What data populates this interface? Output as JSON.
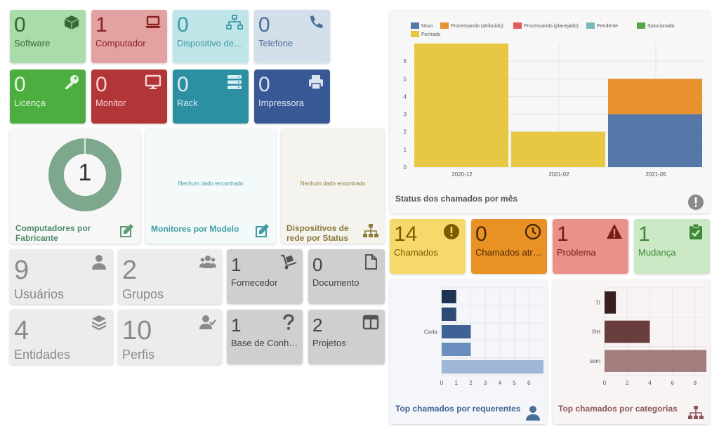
{
  "row1": [
    {
      "num": "0",
      "label": "Software",
      "bg": "#a9dca8",
      "fg": "#2f6b32",
      "icon": "box-icon"
    },
    {
      "num": "1",
      "label": "Computador",
      "bg": "#e3a2a2",
      "fg": "#8a2020",
      "icon": "laptop-icon"
    },
    {
      "num": "0",
      "label": "Dispositivo de rede",
      "bg": "#bfe5e8",
      "fg": "#3f9aa3",
      "icon": "network-icon"
    },
    {
      "num": "0",
      "label": "Telefone",
      "bg": "#d3dfea",
      "fg": "#4a6f99",
      "icon": "phone-icon"
    }
  ],
  "row2": [
    {
      "num": "0",
      "label": "Licença",
      "bg": "#4cae3f",
      "fg": "#e6f5e2",
      "icon": "key-icon"
    },
    {
      "num": "0",
      "label": "Monitor",
      "bg": "#b23638",
      "fg": "#f6d6d6",
      "icon": "monitor-icon"
    },
    {
      "num": "0",
      "label": "Rack",
      "bg": "#2c8fa2",
      "fg": "#d8eef2",
      "icon": "server-icon"
    },
    {
      "num": "0",
      "label": "Impressora",
      "bg": "#395996",
      "fg": "#dbe3f1",
      "icon": "printer-icon"
    }
  ],
  "panels": {
    "computers_by_maker": {
      "title": "Computadores por Fabricante",
      "value": "1"
    },
    "monitors_by_model": {
      "title": "Monitores por Modelo",
      "nodata": "Nenhum dado encontrado"
    },
    "network_by_status": {
      "title": "Dispositivos de rede por Status",
      "nodata": "Nenhum dado encontrado"
    }
  },
  "row4": [
    {
      "num": "9",
      "label": "Usuários",
      "icon": "user-icon"
    },
    {
      "num": "2",
      "label": "Grupos",
      "icon": "users-icon"
    },
    {
      "num": "1",
      "label": "Fornecedor",
      "icon": "dolly-icon"
    },
    {
      "num": "0",
      "label": "Documento",
      "icon": "file-icon"
    }
  ],
  "row5": [
    {
      "num": "4",
      "label": "Entidades",
      "icon": "layers-icon"
    },
    {
      "num": "10",
      "label": "Perfis",
      "icon": "user-check-icon"
    },
    {
      "num": "1",
      "label": "Base de Conhecimento",
      "icon": "question-icon"
    },
    {
      "num": "2",
      "label": "Projetos",
      "icon": "columns-icon"
    }
  ],
  "tickets": [
    {
      "num": "14",
      "label": "Chamados",
      "bg": "#f5d96a",
      "fg": "#7a5c00",
      "icon": "exclamation-circle-icon"
    },
    {
      "num": "0",
      "label": "Chamados atrasados",
      "bg": "#ea9126",
      "fg": "#4a2a00",
      "icon": "clock-icon"
    },
    {
      "num": "1",
      "label": "Problema",
      "bg": "#e9928a",
      "fg": "#7a1d14",
      "icon": "warning-icon"
    },
    {
      "num": "1",
      "label": "Mudança",
      "bg": "#cde8c5",
      "fg": "#3f8a3a",
      "icon": "clipboard-check-icon"
    }
  ],
  "status_panel": {
    "title": "Status dos chamados por mês"
  },
  "requesters_panel": {
    "title": "Top chamados por requerentes"
  },
  "categories_panel": {
    "title": "Top chamados por categorias"
  },
  "chart_data": [
    {
      "type": "bar",
      "stacked": true,
      "title": "Status dos chamados por mês",
      "categories": [
        "2020-12",
        "2021-02",
        "2021-05"
      ],
      "series": [
        {
          "name": "Novo",
          "color": "#5577a8",
          "values": [
            0,
            0,
            3
          ]
        },
        {
          "name": "Processando (atribuído)",
          "color": "#e8912f",
          "values": [
            0,
            0,
            2
          ]
        },
        {
          "name": "Processando (planejado)",
          "color": "#e05b5f",
          "values": [
            0,
            0,
            0
          ]
        },
        {
          "name": "Pendente",
          "color": "#79b8bd",
          "values": [
            0,
            0,
            0
          ]
        },
        {
          "name": "Solucionado",
          "color": "#5aa548",
          "values": [
            0,
            0,
            0
          ]
        },
        {
          "name": "Fechado",
          "color": "#e8c744",
          "values": [
            7,
            2,
            0
          ]
        }
      ],
      "yticks": [
        0,
        1,
        2,
        3,
        4,
        5,
        6
      ],
      "ylim": [
        0,
        7
      ]
    },
    {
      "type": "bar",
      "orientation": "horizontal",
      "title": "Top chamados por requerentes",
      "categories": [
        "",
        "",
        "Carla",
        "",
        ""
      ],
      "values": [
        1,
        1,
        2,
        2,
        7
      ],
      "colors": [
        "#1e3452",
        "#2b4a76",
        "#3e6296",
        "#6a8fbf",
        "#9fb6d6"
      ],
      "xticks": [
        0,
        1,
        2,
        3,
        4,
        5,
        6
      ],
      "xlim": [
        0,
        7
      ]
    },
    {
      "type": "bar",
      "orientation": "horizontal",
      "title": "Top chamados por categorias",
      "categories": [
        "TI",
        "RH",
        "sem"
      ],
      "values": [
        1,
        4,
        9
      ],
      "colors": [
        "#3a1f1f",
        "#6a3d3d",
        "#a47e7e"
      ],
      "xticks": [
        0,
        2,
        4,
        6,
        8
      ],
      "xlim": [
        0,
        9
      ]
    }
  ]
}
